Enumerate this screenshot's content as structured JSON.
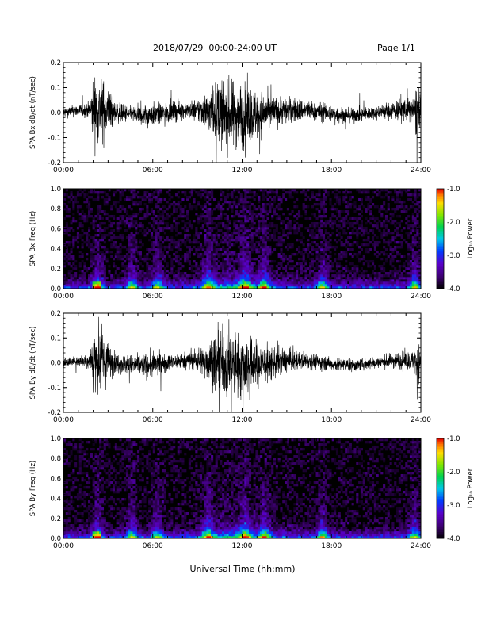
{
  "header": {
    "title": "2018/07/29  00:00-24:00 UT",
    "page": "Page 1/1"
  },
  "footer": {
    "x_axis_title": "Universal Time (hh:mm)"
  },
  "chart_data": [
    {
      "type": "line",
      "ylabel": "SPA Bx dB/dt (nT/sec)",
      "xlabel": "",
      "xlim": [
        "00:00",
        "24:00"
      ],
      "x_ticks": [
        "00:00",
        "06:00",
        "12:00",
        "18:00",
        "24:00"
      ],
      "ylim": [
        -0.2,
        0.2
      ],
      "y_ticks": [
        "-0.2",
        "-0.1",
        "0.0",
        "0.1",
        "0.2"
      ],
      "activity_profile": {
        "hours": [
          0,
          1,
          1.8,
          2.0,
          2.5,
          3.0,
          3.5,
          4.5,
          6.0,
          7.0,
          8.5,
          9.5,
          10.5,
          12.0,
          13.0,
          14.0,
          15.0,
          16.5,
          18.0,
          21.0,
          23.5,
          23.8,
          24.0
        ],
        "amplitude": [
          0.03,
          0.035,
          0.05,
          0.2,
          0.2,
          0.15,
          0.06,
          0.05,
          0.07,
          0.06,
          0.05,
          0.1,
          0.2,
          0.2,
          0.15,
          0.1,
          0.08,
          0.06,
          0.05,
          0.04,
          0.08,
          0.2,
          0.05
        ]
      }
    },
    {
      "type": "heatmap",
      "ylabel": "SPA Bx Freq (Hz)",
      "xlabel": "",
      "xlim": [
        "00:00",
        "24:00"
      ],
      "x_ticks": [
        "00:00",
        "06:00",
        "12:00",
        "18:00",
        "24:00"
      ],
      "ylim": [
        0.0,
        1.0
      ],
      "y_ticks": [
        "0.0",
        "0.2",
        "0.4",
        "0.6",
        "0.8",
        "1.0"
      ],
      "colorbar": {
        "label": "Log₁₀ Power",
        "range": [
          -4.0,
          -1.0
        ],
        "ticks": [
          "-1.0",
          "-2.0",
          "-3.0",
          "-4.0"
        ]
      },
      "events_hours": [
        2.3,
        4.6,
        6.3,
        9.7,
        12.2,
        13.5,
        17.4,
        23.6
      ]
    },
    {
      "type": "line",
      "ylabel": "SPA By dB/dt (nT/sec)",
      "xlabel": "",
      "xlim": [
        "00:00",
        "24:00"
      ],
      "x_ticks": [
        "00:00",
        "06:00",
        "12:00",
        "18:00",
        "24:00"
      ],
      "ylim": [
        -0.2,
        0.2
      ],
      "y_ticks": [
        "-0.2",
        "-0.1",
        "0.0",
        "0.1",
        "0.2"
      ],
      "activity_profile": {
        "hours": [
          0,
          1,
          1.8,
          2.0,
          2.5,
          3.0,
          3.5,
          4.5,
          6.0,
          7.0,
          8.5,
          9.5,
          10.5,
          12.0,
          13.0,
          14.0,
          15.0,
          16.5,
          18.0,
          21.0,
          23.5,
          23.8,
          24.0
        ],
        "amplitude": [
          0.03,
          0.03,
          0.05,
          0.2,
          0.2,
          0.12,
          0.06,
          0.06,
          0.08,
          0.05,
          0.05,
          0.1,
          0.2,
          0.2,
          0.14,
          0.1,
          0.07,
          0.05,
          0.04,
          0.035,
          0.06,
          0.15,
          0.04
        ]
      }
    },
    {
      "type": "heatmap",
      "ylabel": "SPA By Freq (Hz)",
      "xlabel": "",
      "xlim": [
        "00:00",
        "24:00"
      ],
      "x_ticks": [
        "00:00",
        "06:00",
        "12:00",
        "18:00",
        "24:00"
      ],
      "ylim": [
        0.0,
        1.0
      ],
      "y_ticks": [
        "0.0",
        "0.2",
        "0.4",
        "0.6",
        "0.8",
        "1.0"
      ],
      "colorbar": {
        "label": "Log₁₀ Power",
        "range": [
          -4.0,
          -1.0
        ],
        "ticks": [
          "-1.0",
          "-2.0",
          "-3.0",
          "-4.0"
        ]
      },
      "events_hours": [
        2.3,
        4.6,
        6.3,
        9.7,
        12.2,
        13.5,
        17.4,
        23.6
      ]
    }
  ]
}
